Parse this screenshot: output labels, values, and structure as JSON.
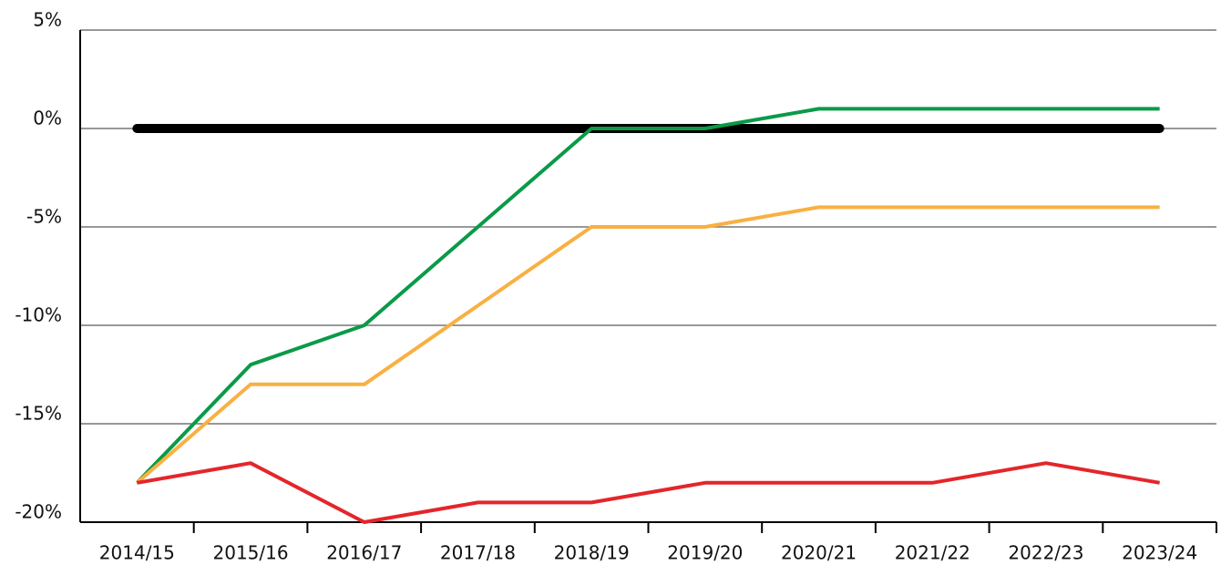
{
  "chart_data": {
    "type": "line",
    "categories": [
      "2014/15",
      "2015/16",
      "2016/17",
      "2017/18",
      "2018/19",
      "2019/20",
      "2020/21",
      "2021/22",
      "2022/23",
      "2023/24"
    ],
    "series": [
      {
        "color": "#000000",
        "values": [
          0,
          0,
          0,
          0,
          0,
          0,
          0,
          0,
          0,
          0
        ]
      },
      {
        "color": "#0a9a48",
        "values": [
          -18,
          -12,
          -10,
          -5,
          0,
          0,
          1,
          1,
          1,
          1
        ]
      },
      {
        "color": "#f9b042",
        "values": [
          -18,
          -13,
          -13,
          -9,
          -5,
          -5,
          -4,
          -4,
          -4,
          -4
        ]
      },
      {
        "color": "#e3262b",
        "values": [
          -18,
          -17,
          -20,
          -19,
          -19,
          -18,
          -18,
          -18,
          -17,
          -18
        ]
      }
    ],
    "ylim": [
      -20,
      5
    ],
    "yticks": [
      {
        "value": 5,
        "label": "5%"
      },
      {
        "value": 0,
        "label": "0%"
      },
      {
        "value": -5,
        "label": "-5%"
      },
      {
        "value": -10,
        "label": "-10%"
      },
      {
        "value": -15,
        "label": "-15%"
      },
      {
        "value": -20,
        "label": "-20%"
      }
    ],
    "grid": true
  }
}
